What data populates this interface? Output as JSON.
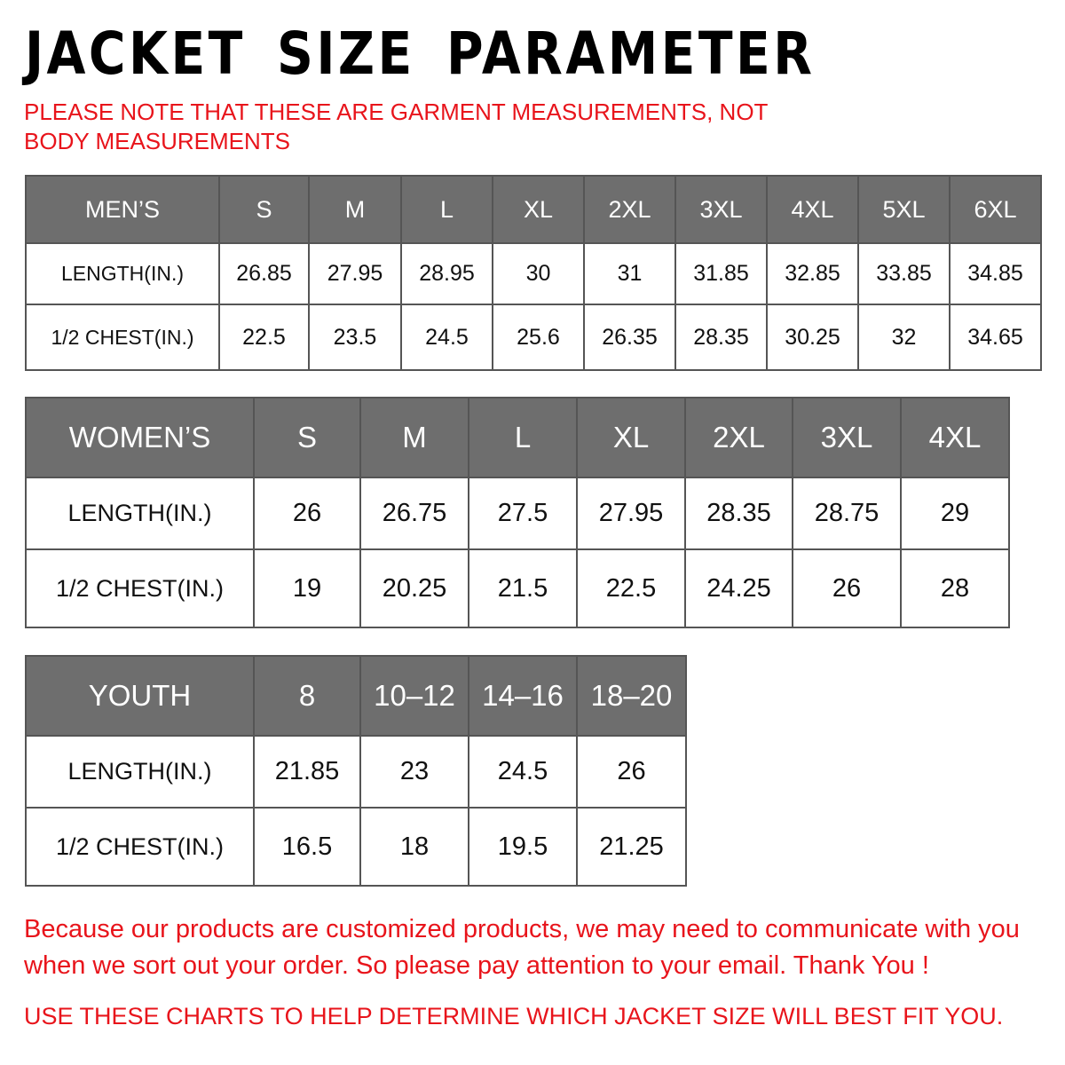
{
  "title": "JACKET SIZE PARAMETER",
  "note": "PLEASE NOTE THAT THESE ARE GARMENT MEASUREMENTS, NOT BODY MEASUREMENTS",
  "colors": {
    "header_bg": "#6e6e6e",
    "accent_red": "#e8141b"
  },
  "mens": {
    "headers": [
      "MEN’S",
      "S",
      "M",
      "L",
      "XL",
      "2XL",
      "3XL",
      "4XL",
      "5XL",
      "6XL"
    ],
    "rows": [
      [
        "LENGTH(IN.)",
        "26.85",
        "27.95",
        "28.95",
        "30",
        "31",
        "31.85",
        "32.85",
        "33.85",
        "34.85"
      ],
      [
        "1/2 CHEST(IN.)",
        "22.5",
        "23.5",
        "24.5",
        "25.6",
        "26.35",
        "28.35",
        "30.25",
        "32",
        "34.65"
      ]
    ]
  },
  "womens": {
    "headers": [
      "WOMEN’S",
      "S",
      "M",
      "L",
      "XL",
      "2XL",
      "3XL",
      "4XL"
    ],
    "rows": [
      [
        "LENGTH(IN.)",
        "26",
        "26.75",
        "27.5",
        "27.95",
        "28.35",
        "28.75",
        "29"
      ],
      [
        "1/2 CHEST(IN.)",
        "19",
        "20.25",
        "21.5",
        "22.5",
        "24.25",
        "26",
        "28"
      ]
    ]
  },
  "youth": {
    "headers": [
      "YOUTH",
      "8",
      "10–12",
      "14–16",
      "18–20"
    ],
    "rows": [
      [
        "LENGTH(IN.)",
        "21.85",
        "23",
        "24.5",
        "26"
      ],
      [
        "1/2 CHEST(IN.)",
        "16.5",
        "18",
        "19.5",
        "21.25"
      ]
    ]
  },
  "message": "Because our products are customized products, we may need to communicate with you when we sort out your order. So please pay attention to your email. Thank You !",
  "footer": "USE THESE CHARTS TO HELP DETERMINE WHICH JACKET SIZE WILL BEST FIT YOU."
}
